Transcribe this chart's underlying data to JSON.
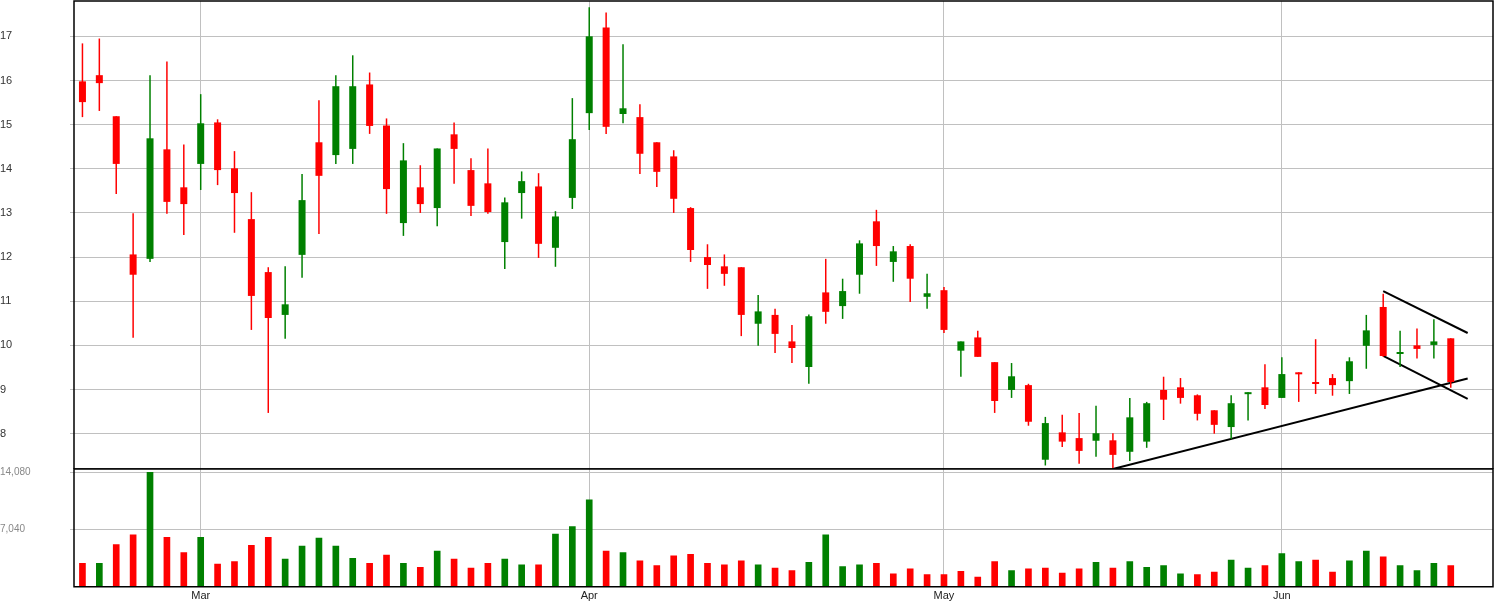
{
  "chart_data": [
    {
      "type": "candlestick",
      "tick_labels": "y",
      "grid": true,
      "legend": false,
      "categories": [
        null,
        null,
        null,
        null,
        null,
        null,
        null,
        null,
        null,
        null,
        null,
        null,
        null,
        null,
        null,
        null,
        null,
        null,
        null,
        null,
        null,
        null,
        null,
        null,
        null,
        null,
        null,
        null,
        null,
        null,
        null,
        null,
        null,
        null,
        null,
        null,
        null,
        null,
        null,
        null,
        null,
        null,
        null,
        null,
        null,
        null,
        null,
        null,
        null,
        null,
        null,
        null,
        null,
        null,
        null,
        null,
        null,
        null,
        null,
        null,
        null,
        null,
        null,
        null,
        null,
        null,
        null,
        null,
        null,
        null,
        null,
        null,
        null,
        null,
        null,
        null,
        null,
        null,
        null,
        null,
        null,
        null,
        null,
        null
      ],
      "ylim": [
        7.2,
        17.8
      ],
      "yticks": [
        8,
        9,
        10,
        11,
        12,
        13,
        14,
        15,
        16,
        17
      ],
      "ohlc": [
        [
          15.98,
          16.84,
          15.17,
          15.51
        ],
        [
          16.12,
          16.95,
          15.31,
          15.94
        ],
        [
          15.19,
          15.19,
          13.43,
          14.11
        ],
        [
          12.06,
          12.99,
          10.17,
          11.6
        ],
        [
          11.96,
          16.12,
          11.89,
          14.69
        ],
        [
          14.44,
          16.43,
          12.98,
          13.25
        ],
        [
          13.58,
          14.55,
          12.5,
          13.2
        ],
        [
          14.11,
          15.69,
          13.52,
          15.03
        ],
        [
          15.05,
          15.12,
          13.63,
          13.97
        ],
        [
          14.01,
          14.4,
          12.55,
          13.45
        ],
        [
          12.86,
          13.47,
          10.35,
          11.12
        ],
        [
          11.66,
          11.77,
          8.47,
          10.62
        ],
        [
          10.69,
          11.79,
          10.15,
          10.93
        ],
        [
          12.05,
          13.88,
          11.53,
          13.29
        ],
        [
          14.6,
          15.55,
          12.52,
          13.84
        ],
        [
          14.31,
          16.12,
          14.11,
          15.87
        ],
        [
          14.45,
          16.57,
          14.11,
          15.87
        ],
        [
          15.91,
          16.18,
          14.79,
          14.97
        ],
        [
          14.98,
          15.14,
          12.98,
          13.54
        ],
        [
          12.77,
          14.58,
          12.48,
          14.19
        ],
        [
          13.58,
          14.08,
          13.0,
          13.2
        ],
        [
          13.11,
          14.46,
          12.7,
          14.46
        ],
        [
          14.78,
          15.05,
          13.66,
          14.45
        ],
        [
          13.97,
          14.24,
          12.93,
          13.16
        ],
        [
          13.67,
          14.46,
          12.98,
          13.02
        ],
        [
          12.34,
          13.35,
          11.73,
          13.24
        ],
        [
          13.45,
          13.94,
          12.87,
          13.72
        ],
        [
          13.6,
          13.9,
          11.98,
          12.3
        ],
        [
          12.21,
          13.04,
          11.78,
          12.92
        ],
        [
          13.34,
          15.6,
          13.09,
          14.67
        ],
        [
          15.26,
          17.66,
          14.88,
          17.0
        ],
        [
          17.2,
          17.54,
          14.79,
          14.95
        ],
        [
          15.24,
          16.82,
          15.03,
          15.37
        ],
        [
          15.17,
          15.46,
          13.88,
          14.34
        ],
        [
          14.6,
          14.6,
          13.59,
          13.93
        ],
        [
          14.28,
          14.42,
          13.0,
          13.32
        ],
        [
          13.11,
          13.13,
          11.89,
          12.16
        ],
        [
          12.0,
          12.29,
          11.28,
          11.82
        ],
        [
          11.79,
          12.06,
          11.35,
          11.62
        ],
        [
          11.77,
          11.77,
          10.21,
          10.69
        ],
        [
          10.49,
          11.14,
          9.99,
          10.77
        ],
        [
          10.69,
          10.83,
          9.83,
          10.26
        ],
        [
          10.09,
          10.46,
          9.6,
          9.94
        ],
        [
          9.51,
          10.7,
          9.13,
          10.66
        ],
        [
          11.2,
          11.96,
          10.49,
          10.76
        ],
        [
          10.89,
          11.51,
          10.6,
          11.23
        ],
        [
          11.6,
          12.38,
          11.17,
          12.31
        ],
        [
          12.81,
          13.07,
          11.8,
          12.25
        ],
        [
          11.89,
          12.25,
          11.44,
          12.13
        ],
        [
          12.25,
          12.29,
          10.98,
          11.51
        ],
        [
          11.1,
          11.62,
          10.83,
          11.18
        ],
        [
          11.25,
          11.32,
          10.28,
          10.35
        ],
        [
          9.88,
          10.09,
          9.29,
          10.09
        ],
        [
          10.18,
          10.33,
          9.74,
          9.74
        ],
        [
          9.62,
          9.62,
          8.47,
          8.74
        ],
        [
          8.99,
          9.6,
          8.81,
          9.3
        ],
        [
          9.1,
          9.13,
          8.18,
          8.27
        ],
        [
          7.41,
          8.38,
          7.28,
          8.24
        ],
        [
          8.03,
          8.43,
          7.7,
          7.82
        ],
        [
          7.9,
          8.47,
          7.32,
          7.61
        ],
        [
          7.84,
          8.63,
          7.48,
          8.01
        ],
        [
          7.85,
          8.01,
          7.2,
          7.52
        ],
        [
          7.59,
          8.81,
          7.38,
          8.37
        ],
        [
          7.82,
          8.72,
          7.68,
          8.69
        ],
        [
          8.99,
          9.29,
          8.31,
          8.77
        ],
        [
          9.05,
          9.26,
          8.68,
          8.81
        ],
        [
          8.87,
          8.89,
          8.3,
          8.45
        ],
        [
          8.53,
          8.53,
          8.0,
          8.2
        ],
        [
          8.15,
          8.87,
          7.88,
          8.69
        ],
        [
          8.9,
          8.94,
          8.3,
          8.94
        ],
        [
          9.05,
          9.57,
          8.56,
          8.65
        ],
        [
          8.81,
          9.73,
          8.81,
          9.35
        ],
        [
          9.39,
          9.39,
          8.72,
          9.37
        ],
        [
          9.17,
          10.14,
          8.9,
          9.15
        ],
        [
          9.26,
          9.35,
          8.86,
          9.1
        ],
        [
          9.19,
          9.73,
          8.9,
          9.64
        ],
        [
          9.99,
          10.69,
          9.47,
          10.34
        ],
        [
          10.87,
          11.17,
          9.74,
          9.76
        ],
        [
          9.81,
          10.33,
          9.51,
          9.85
        ],
        [
          10.0,
          10.38,
          9.7,
          9.92
        ],
        [
          10.01,
          10.59,
          9.7,
          10.09
        ],
        [
          10.16,
          10.16,
          9.04,
          9.17
        ],
        null,
        null
      ],
      "colors": [
        "#ff0000",
        "#ff0000",
        "#ff0000",
        "#ff0000",
        "#008000",
        "#ff0000",
        "#ff0000",
        "#008000",
        "#ff0000",
        "#ff0000",
        "#ff0000",
        "#ff0000",
        "#008000",
        "#008000",
        "#ff0000",
        "#008000",
        "#008000",
        "#ff0000",
        "#ff0000",
        "#008000",
        "#ff0000",
        "#008000",
        "#ff0000",
        "#ff0000",
        "#ff0000",
        "#008000",
        "#008000",
        "#ff0000",
        "#008000",
        "#008000",
        "#008000",
        "#ff0000",
        "#008000",
        "#ff0000",
        "#ff0000",
        "#ff0000",
        "#ff0000",
        "#ff0000",
        "#ff0000",
        "#ff0000",
        "#008000",
        "#ff0000",
        "#ff0000",
        "#008000",
        "#ff0000",
        "#008000",
        "#008000",
        "#ff0000",
        "#008000",
        "#ff0000",
        "#008000",
        "#ff0000",
        "#008000",
        "#ff0000",
        "#ff0000",
        "#008000",
        "#ff0000",
        "#008000",
        "#ff0000",
        "#ff0000",
        "#008000",
        "#ff0000",
        "#008000",
        "#008000",
        "#ff0000",
        "#ff0000",
        "#ff0000",
        "#ff0000",
        "#008000",
        "#008000",
        "#ff0000",
        "#008000",
        "#ff0000",
        "#ff0000",
        "#ff0000",
        "#008000",
        "#008000",
        "#ff0000",
        "#008000",
        "#ff0000",
        "#008000",
        "#ff0000",
        null,
        null
      ],
      "series": [
        {
          "type": "line",
          "color": "#000000",
          "values": [
            null,
            null,
            null,
            null,
            null,
            null,
            null,
            null,
            null,
            null,
            null,
            null,
            null,
            null,
            null,
            null,
            null,
            null,
            null,
            null,
            null,
            null,
            null,
            null,
            null,
            null,
            null,
            null,
            null,
            null,
            null,
            null,
            null,
            null,
            null,
            null,
            null,
            null,
            null,
            null,
            null,
            null,
            null,
            null,
            null,
            null,
            null,
            null,
            null,
            null,
            null,
            null,
            null,
            null,
            null,
            null,
            null,
            null,
            null,
            null,
            null,
            7.2,
            null,
            null,
            null,
            null,
            null,
            null,
            null,
            null,
            null,
            null,
            null,
            null,
            null,
            null,
            null,
            null,
            null,
            null,
            null,
            null,
            9.25,
            null
          ]
        },
        {
          "type": "line",
          "color": "#000000",
          "values": [
            null,
            null,
            null,
            null,
            null,
            null,
            null,
            null,
            null,
            null,
            null,
            null,
            null,
            null,
            null,
            null,
            null,
            null,
            null,
            null,
            null,
            null,
            null,
            null,
            null,
            null,
            null,
            null,
            null,
            null,
            null,
            null,
            null,
            null,
            null,
            null,
            null,
            null,
            null,
            null,
            null,
            null,
            null,
            null,
            null,
            null,
            null,
            null,
            null,
            null,
            null,
            null,
            null,
            null,
            null,
            null,
            null,
            null,
            null,
            null,
            null,
            null,
            null,
            null,
            null,
            null,
            null,
            null,
            null,
            null,
            null,
            null,
            null,
            null,
            null,
            null,
            null,
            11.23,
            null,
            null,
            null,
            null,
            10.28,
            null
          ]
        },
        {
          "type": "line",
          "color": "#000000",
          "values": [
            null,
            null,
            null,
            null,
            null,
            null,
            null,
            null,
            null,
            null,
            null,
            null,
            null,
            null,
            null,
            null,
            null,
            null,
            null,
            null,
            null,
            null,
            null,
            null,
            null,
            null,
            null,
            null,
            null,
            null,
            null,
            null,
            null,
            null,
            null,
            null,
            null,
            null,
            null,
            null,
            null,
            null,
            null,
            null,
            null,
            null,
            null,
            null,
            null,
            null,
            null,
            null,
            null,
            null,
            null,
            null,
            null,
            null,
            null,
            null,
            null,
            null,
            null,
            null,
            null,
            null,
            null,
            null,
            null,
            null,
            null,
            null,
            null,
            null,
            null,
            null,
            null,
            9.76,
            null,
            null,
            null,
            null,
            8.79,
            null
          ]
        }
      ]
    },
    {
      "type": "bar",
      "grid": true,
      "legend": false,
      "categories": [
        null,
        null,
        null,
        null,
        null,
        null,
        null,
        "Mar",
        null,
        null,
        null,
        null,
        null,
        null,
        null,
        null,
        null,
        null,
        null,
        null,
        null,
        null,
        null,
        null,
        null,
        null,
        null,
        null,
        null,
        null,
        "Apr",
        null,
        null,
        null,
        null,
        null,
        null,
        null,
        null,
        null,
        null,
        null,
        null,
        null,
        null,
        null,
        null,
        null,
        null,
        null,
        null,
        "May",
        null,
        null,
        null,
        null,
        null,
        null,
        null,
        null,
        null,
        null,
        null,
        null,
        null,
        null,
        null,
        null,
        null,
        null,
        null,
        "Jun",
        null,
        null,
        null,
        null,
        null,
        null,
        null,
        null,
        null,
        null,
        null,
        null
      ],
      "ylim": [
        0,
        14500
      ],
      "yticks": [
        {
          "value": 7040,
          "label": "7,040"
        },
        {
          "value": 14080,
          "label": "14,080"
        }
      ],
      "values": [
        2900,
        2900,
        5200,
        6400,
        14100,
        6100,
        4200,
        6100,
        2800,
        3100,
        5100,
        6100,
        3400,
        5000,
        6000,
        5000,
        3500,
        2900,
        3900,
        2900,
        2400,
        4400,
        3400,
        2300,
        2900,
        3400,
        2700,
        2700,
        6500,
        7400,
        10700,
        4400,
        4200,
        3200,
        2600,
        3800,
        4000,
        2900,
        2700,
        3200,
        2700,
        2300,
        2000,
        3000,
        6400,
        2500,
        2700,
        2900,
        1600,
        2200,
        1500,
        1500,
        1900,
        1200,
        3100,
        2000,
        2200,
        2300,
        1700,
        2200,
        3000,
        2300,
        3100,
        2400,
        2600,
        1600,
        1500,
        1800,
        3300,
        2300,
        2600,
        4100,
        3100,
        3300,
        1800,
        3200,
        4400,
        3700,
        2600,
        2000,
        2900,
        2600,
        null,
        null
      ],
      "colors": [
        "#ff0000",
        "#008000",
        "#ff0000",
        "#ff0000",
        "#008000",
        "#ff0000",
        "#ff0000",
        "#008000",
        "#ff0000",
        "#ff0000",
        "#ff0000",
        "#ff0000",
        "#008000",
        "#008000",
        "#008000",
        "#008000",
        "#008000",
        "#ff0000",
        "#ff0000",
        "#008000",
        "#ff0000",
        "#008000",
        "#ff0000",
        "#ff0000",
        "#ff0000",
        "#008000",
        "#008000",
        "#ff0000",
        "#008000",
        "#008000",
        "#008000",
        "#ff0000",
        "#008000",
        "#ff0000",
        "#ff0000",
        "#ff0000",
        "#ff0000",
        "#ff0000",
        "#ff0000",
        "#ff0000",
        "#008000",
        "#ff0000",
        "#ff0000",
        "#008000",
        "#008000",
        "#008000",
        "#008000",
        "#ff0000",
        "#ff0000",
        "#ff0000",
        "#ff0000",
        "#ff0000",
        "#ff0000",
        "#ff0000",
        "#ff0000",
        "#008000",
        "#ff0000",
        "#ff0000",
        "#ff0000",
        "#ff0000",
        "#008000",
        "#ff0000",
        "#008000",
        "#008000",
        "#008000",
        "#008000",
        "#ff0000",
        "#ff0000",
        "#008000",
        "#008000",
        "#ff0000",
        "#008000",
        "#008000",
        "#ff0000",
        "#ff0000",
        "#008000",
        "#008000",
        "#ff0000",
        "#008000",
        "#008000",
        "#008000",
        "#ff0000",
        null,
        null
      ]
    }
  ]
}
